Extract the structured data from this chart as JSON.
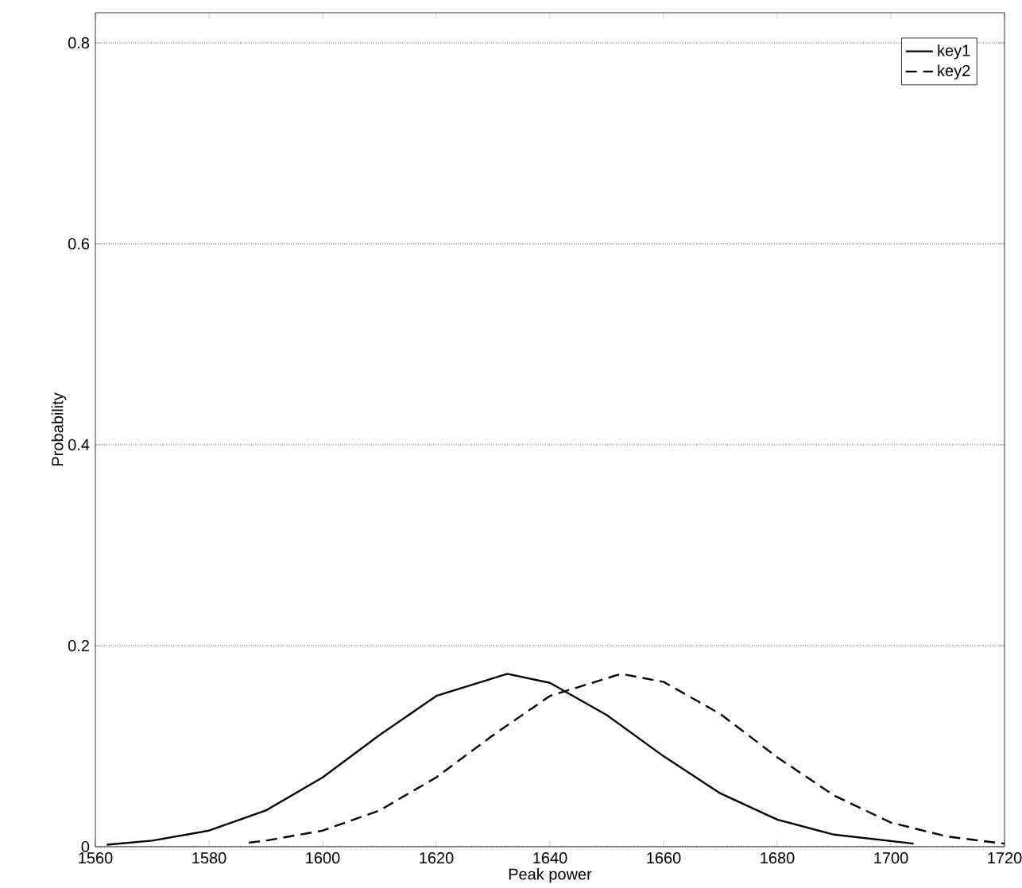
{
  "chart_data": {
    "type": "line",
    "xlabel": "Peak power",
    "ylabel": "Probability",
    "xlim": [
      1560,
      1720
    ],
    "ylim": [
      0,
      0.83
    ],
    "xticks": [
      1560,
      1580,
      1600,
      1620,
      1640,
      1660,
      1680,
      1700,
      1720
    ],
    "yticks": [
      0,
      0.2,
      0.4,
      0.6,
      0.8
    ],
    "grid": "y",
    "legend": "top right",
    "series": [
      {
        "name": "key1",
        "color": "#000000",
        "line_style": "solid",
        "x": [
          1562,
          1570,
          1580,
          1590,
          1600,
          1610,
          1620,
          1632.5,
          1640,
          1650,
          1660,
          1670,
          1680,
          1690,
          1704
        ],
        "values": [
          0.002,
          0.006,
          0.016,
          0.036,
          0.069,
          0.111,
          0.15,
          0.172,
          0.163,
          0.131,
          0.09,
          0.053,
          0.027,
          0.012,
          0.003
        ]
      },
      {
        "name": "key2",
        "color": "#000000",
        "line_style": "dashed",
        "x": [
          1587,
          1590,
          1600,
          1610,
          1620,
          1630,
          1640,
          1652.5,
          1660,
          1670,
          1680,
          1690,
          1700,
          1710,
          1720
        ],
        "values": [
          0.004,
          0.006,
          0.016,
          0.036,
          0.069,
          0.111,
          0.15,
          0.172,
          0.164,
          0.132,
          0.089,
          0.051,
          0.024,
          0.01,
          0.003
        ]
      }
    ]
  }
}
